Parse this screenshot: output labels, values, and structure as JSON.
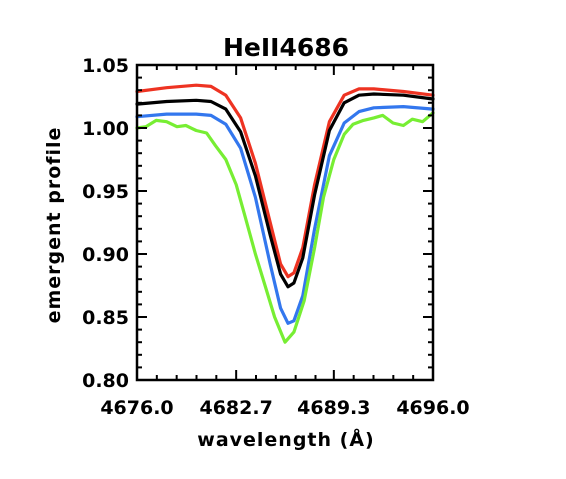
{
  "chart_data": {
    "type": "line",
    "title": "HeII4686",
    "xlabel": "wavelength (Å)",
    "ylabel": "emergent profile",
    "xlim": [
      4676.0,
      4696.0
    ],
    "ylim": [
      0.8,
      1.05
    ],
    "x_ticks": [
      {
        "value": 4676.0,
        "label": "4676.0"
      },
      {
        "value": 4682.7,
        "label": "4682.7"
      },
      {
        "value": 4689.3,
        "label": "4689.3"
      },
      {
        "value": 4696.0,
        "label": "4696.0"
      }
    ],
    "y_ticks": [
      {
        "value": 0.8,
        "label": "0.80"
      },
      {
        "value": 0.85,
        "label": "0.85"
      },
      {
        "value": 0.9,
        "label": "0.90"
      },
      {
        "value": 0.95,
        "label": "0.95"
      },
      {
        "value": 1.0,
        "label": "1.00"
      },
      {
        "value": 1.05,
        "label": "1.05"
      }
    ],
    "grid": false,
    "legend": "none",
    "series": [
      {
        "color": "#ee3322",
        "points": [
          [
            4676.0,
            1.029
          ],
          [
            4678.0,
            1.032
          ],
          [
            4680.0,
            1.034
          ],
          [
            4681.0,
            1.033
          ],
          [
            4682.0,
            1.026
          ],
          [
            4683.0,
            1.008
          ],
          [
            4684.0,
            0.972
          ],
          [
            4685.0,
            0.925
          ],
          [
            4685.7,
            0.892
          ],
          [
            4686.2,
            0.882
          ],
          [
            4686.6,
            0.885
          ],
          [
            4687.2,
            0.905
          ],
          [
            4688.0,
            0.955
          ],
          [
            4689.0,
            1.005
          ],
          [
            4690.0,
            1.026
          ],
          [
            4691.0,
            1.031
          ],
          [
            4692.0,
            1.031
          ],
          [
            4694.0,
            1.029
          ],
          [
            4696.0,
            1.026
          ]
        ]
      },
      {
        "color": "#000000",
        "points": [
          [
            4676.0,
            1.019
          ],
          [
            4678.0,
            1.021
          ],
          [
            4680.0,
            1.022
          ],
          [
            4681.0,
            1.021
          ],
          [
            4682.0,
            1.015
          ],
          [
            4683.0,
            0.997
          ],
          [
            4684.0,
            0.962
          ],
          [
            4685.0,
            0.915
          ],
          [
            4685.7,
            0.884
          ],
          [
            4686.2,
            0.874
          ],
          [
            4686.6,
            0.877
          ],
          [
            4687.2,
            0.897
          ],
          [
            4688.0,
            0.947
          ],
          [
            4689.0,
            0.998
          ],
          [
            4690.0,
            1.02
          ],
          [
            4691.0,
            1.026
          ],
          [
            4692.0,
            1.027
          ],
          [
            4694.0,
            1.026
          ],
          [
            4696.0,
            1.023
          ]
        ]
      },
      {
        "color": "#3377ee",
        "points": [
          [
            4676.0,
            1.009
          ],
          [
            4678.0,
            1.011
          ],
          [
            4680.0,
            1.011
          ],
          [
            4681.0,
            1.01
          ],
          [
            4682.0,
            1.003
          ],
          [
            4683.0,
            0.984
          ],
          [
            4684.0,
            0.945
          ],
          [
            4685.0,
            0.892
          ],
          [
            4685.7,
            0.857
          ],
          [
            4686.2,
            0.845
          ],
          [
            4686.6,
            0.847
          ],
          [
            4687.2,
            0.867
          ],
          [
            4688.0,
            0.92
          ],
          [
            4689.0,
            0.978
          ],
          [
            4690.0,
            1.004
          ],
          [
            4691.0,
            1.013
          ],
          [
            4692.0,
            1.016
          ],
          [
            4694.0,
            1.017
          ],
          [
            4696.0,
            1.015
          ]
        ]
      },
      {
        "color": "#77ee33",
        "points": [
          [
            4676.0,
            1.0
          ],
          [
            4676.6,
            1.001
          ],
          [
            4677.3,
            1.006
          ],
          [
            4678.0,
            1.005
          ],
          [
            4678.7,
            1.001
          ],
          [
            4679.3,
            1.002
          ],
          [
            4680.0,
            0.998
          ],
          [
            4680.7,
            0.996
          ],
          [
            4681.3,
            0.986
          ],
          [
            4682.0,
            0.975
          ],
          [
            4682.7,
            0.955
          ],
          [
            4683.3,
            0.93
          ],
          [
            4684.0,
            0.9
          ],
          [
            4684.7,
            0.873
          ],
          [
            4685.3,
            0.85
          ],
          [
            4686.0,
            0.83
          ],
          [
            4686.6,
            0.838
          ],
          [
            4687.3,
            0.863
          ],
          [
            4688.0,
            0.905
          ],
          [
            4688.6,
            0.945
          ],
          [
            4689.3,
            0.975
          ],
          [
            4690.0,
            0.995
          ],
          [
            4690.6,
            1.003
          ],
          [
            4691.3,
            1.006
          ],
          [
            4692.0,
            1.008
          ],
          [
            4692.6,
            1.01
          ],
          [
            4693.3,
            1.004
          ],
          [
            4694.0,
            1.002
          ],
          [
            4694.6,
            1.007
          ],
          [
            4695.3,
            1.005
          ],
          [
            4696.0,
            1.012
          ]
        ]
      }
    ]
  }
}
